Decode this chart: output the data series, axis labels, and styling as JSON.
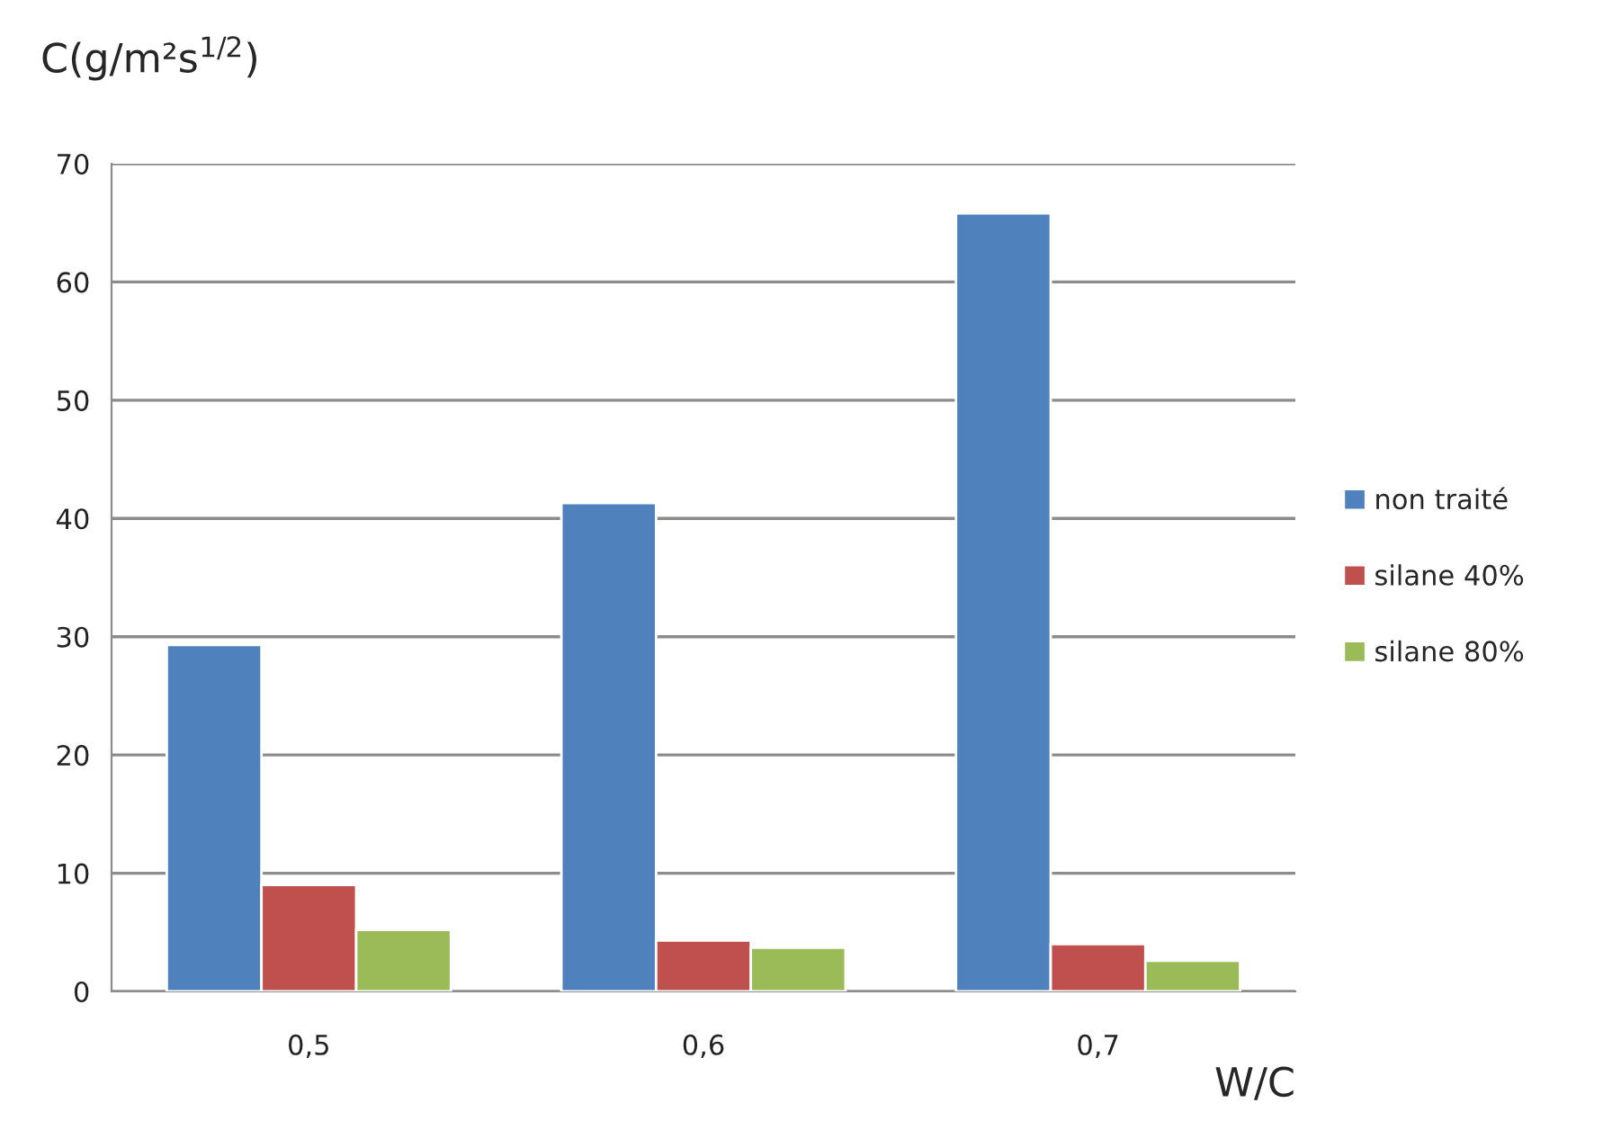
{
  "chart_data": {
    "type": "bar",
    "ylabel": "C(g/m²s$^{1/2}$)",
    "xlabel": "W/C",
    "categories": [
      "0,5",
      "0,6",
      "0,7"
    ],
    "series": [
      {
        "name": "non traité",
        "color": "#4f81bd",
        "values": [
          29.3,
          41.3,
          65.8
        ]
      },
      {
        "name": "silane 40%",
        "color": "#c0504d",
        "values": [
          9.0,
          4.3,
          4.0
        ]
      },
      {
        "name": "silane 80%",
        "color": "#9bbb59",
        "values": [
          5.2,
          3.7,
          2.6
        ]
      }
    ],
    "ylim": [
      0,
      70
    ],
    "yticks": [
      0,
      10,
      20,
      30,
      40,
      50,
      60,
      70
    ],
    "grid": "y",
    "legend": "right"
  }
}
